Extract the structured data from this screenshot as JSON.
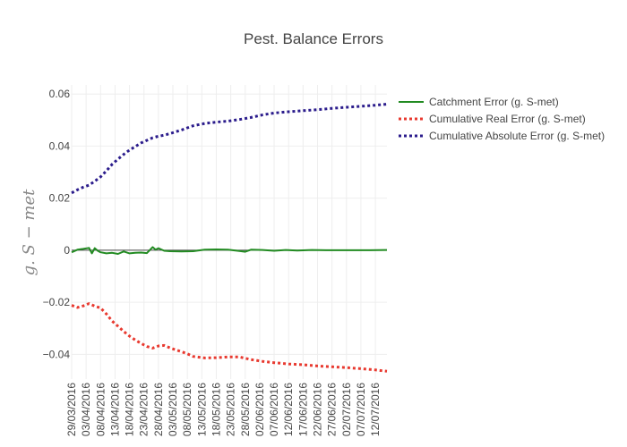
{
  "chart_data": {
    "type": "line",
    "title": "Pest. Balance Errors",
    "xlabel": "",
    "ylabel": "g. S − met",
    "x_ticks": [
      "29/03/2016",
      "03/04/2016",
      "08/04/2016",
      "13/04/2016",
      "18/04/2016",
      "23/04/2016",
      "28/04/2016",
      "03/05/2016",
      "08/05/2016",
      "13/05/2016",
      "18/05/2016",
      "23/05/2016",
      "28/05/2016",
      "02/06/2016",
      "07/06/2016",
      "12/06/2016",
      "17/06/2016",
      "22/06/2016",
      "27/06/2016",
      "02/07/2016",
      "07/07/2016",
      "12/07/2016"
    ],
    "y_ticks": [
      0.06,
      0.04,
      0.02,
      0,
      -0.02,
      -0.04
    ],
    "y_tick_labels": [
      "0.06",
      "0.04",
      "0.02",
      "0",
      "−0.02",
      "−0.04"
    ],
    "xlim": [
      "2016-03-29",
      "2016-07-16"
    ],
    "ylim": [
      -0.0495,
      0.0635
    ],
    "grid": true,
    "legend_position": "top-right",
    "series": [
      {
        "name": "Catchment Error (g. S-met)",
        "color": "#228B22",
        "dash": "solid",
        "x": [
          "2016-03-29",
          "2016-03-31",
          "2016-04-02",
          "2016-04-04",
          "2016-04-05",
          "2016-04-06",
          "2016-04-07",
          "2016-04-08",
          "2016-04-10",
          "2016-04-12",
          "2016-04-14",
          "2016-04-16",
          "2016-04-18",
          "2016-04-20",
          "2016-04-22",
          "2016-04-24",
          "2016-04-26",
          "2016-04-27",
          "2016-04-28",
          "2016-04-30",
          "2016-05-02",
          "2016-05-06",
          "2016-05-10",
          "2016-05-14",
          "2016-05-18",
          "2016-05-22",
          "2016-05-26",
          "2016-05-28",
          "2016-05-30",
          "2016-06-03",
          "2016-06-07",
          "2016-06-11",
          "2016-06-15",
          "2016-06-20",
          "2016-06-25",
          "2016-06-30",
          "2016-07-05",
          "2016-07-10",
          "2016-07-16"
        ],
        "y": [
          -0.0008,
          0.0002,
          0.0005,
          0.0009,
          -0.0012,
          0.0008,
          -0.0002,
          -0.0008,
          -0.0012,
          -0.001,
          -0.0014,
          -0.0005,
          -0.0012,
          -0.001,
          -0.0009,
          -0.0011,
          0.0012,
          0.0002,
          0.0008,
          -0.0002,
          -0.0004,
          -0.0005,
          -0.0004,
          0.0002,
          0.0003,
          0.0002,
          -0.0003,
          -0.0006,
          0.0002,
          0.0001,
          -0.0002,
          0.0001,
          -0.0001,
          0.0001,
          0.0,
          0.0,
          0.0,
          0.0,
          0.0001
        ]
      },
      {
        "name": "Cumulative Real Error (g. S-met)",
        "color": "#E8392F",
        "dash": "dot",
        "x": [
          "2016-03-29",
          "2016-03-31",
          "2016-04-02",
          "2016-04-04",
          "2016-04-06",
          "2016-04-08",
          "2016-04-10",
          "2016-04-12",
          "2016-04-14",
          "2016-04-16",
          "2016-04-18",
          "2016-04-20",
          "2016-04-22",
          "2016-04-24",
          "2016-04-26",
          "2016-04-28",
          "2016-04-30",
          "2016-05-02",
          "2016-05-04",
          "2016-05-06",
          "2016-05-08",
          "2016-05-10",
          "2016-05-14",
          "2016-05-18",
          "2016-05-22",
          "2016-05-26",
          "2016-05-30",
          "2016-06-03",
          "2016-06-07",
          "2016-06-12",
          "2016-06-17",
          "2016-06-22",
          "2016-06-27",
          "2016-07-02",
          "2016-07-07",
          "2016-07-12",
          "2016-07-16"
        ],
        "y": [
          -0.0212,
          -0.022,
          -0.0214,
          -0.0205,
          -0.0215,
          -0.0222,
          -0.0245,
          -0.0272,
          -0.0292,
          -0.0312,
          -0.033,
          -0.0345,
          -0.0358,
          -0.037,
          -0.0376,
          -0.0368,
          -0.0366,
          -0.0375,
          -0.0383,
          -0.039,
          -0.0398,
          -0.0408,
          -0.0414,
          -0.0413,
          -0.041,
          -0.041,
          -0.042,
          -0.0427,
          -0.0432,
          -0.0437,
          -0.044,
          -0.0445,
          -0.0448,
          -0.0451,
          -0.0455,
          -0.046,
          -0.0465
        ]
      },
      {
        "name": "Cumulative Absolute Error (g. S-met)",
        "color": "#2B1C8C",
        "dash": "dot",
        "x": [
          "2016-03-29",
          "2016-03-31",
          "2016-04-02",
          "2016-04-04",
          "2016-04-06",
          "2016-04-08",
          "2016-04-10",
          "2016-04-12",
          "2016-04-14",
          "2016-04-16",
          "2016-04-18",
          "2016-04-20",
          "2016-04-22",
          "2016-04-24",
          "2016-04-26",
          "2016-04-28",
          "2016-04-30",
          "2016-05-02",
          "2016-05-04",
          "2016-05-06",
          "2016-05-08",
          "2016-05-10",
          "2016-05-14",
          "2016-05-18",
          "2016-05-22",
          "2016-05-26",
          "2016-05-30",
          "2016-06-03",
          "2016-06-07",
          "2016-06-12",
          "2016-06-17",
          "2016-06-22",
          "2016-06-27",
          "2016-07-02",
          "2016-07-07",
          "2016-07-12",
          "2016-07-16"
        ],
        "y": [
          0.022,
          0.0232,
          0.0242,
          0.025,
          0.0265,
          0.0282,
          0.0305,
          0.033,
          0.035,
          0.0368,
          0.0385,
          0.0398,
          0.0412,
          0.0422,
          0.0432,
          0.0438,
          0.0442,
          0.0448,
          0.0455,
          0.0462,
          0.047,
          0.0478,
          0.0487,
          0.0492,
          0.0496,
          0.0502,
          0.051,
          0.052,
          0.0527,
          0.0532,
          0.0536,
          0.054,
          0.0545,
          0.0549,
          0.0553,
          0.0557,
          0.0561
        ]
      }
    ]
  }
}
